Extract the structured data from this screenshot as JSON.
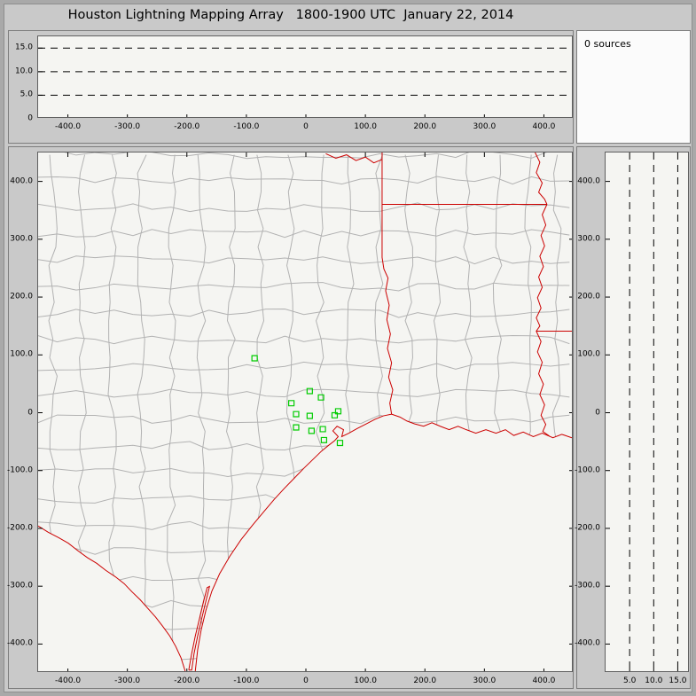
{
  "title": "Houston Lightning Mapping Array   1800-1900 UTC  January 22, 2014",
  "sources_panel": {
    "label": "0 sources"
  },
  "colors": {
    "background": "#c9c9c9",
    "plot_bg": "#f5f5f2",
    "county_line": "#b2b2b2",
    "state_line": "#cc0000",
    "station": "#00cc00",
    "gridline": "#000000",
    "text": "#000000"
  },
  "chart_data": [
    {
      "id": "altitude_vs_ew_distance",
      "type": "scatter",
      "xlim": [
        -450,
        450
      ],
      "ylim": [
        0,
        17.5
      ],
      "xticks": [
        {
          "v": -400,
          "label": "-400.0"
        },
        {
          "v": -300,
          "label": "-300.0"
        },
        {
          "v": -200,
          "label": "-200.0"
        },
        {
          "v": -100,
          "label": "-100.0"
        },
        {
          "v": 0,
          "label": "0"
        },
        {
          "v": 100,
          "label": "100.0"
        },
        {
          "v": 200,
          "label": "200.0"
        },
        {
          "v": 300,
          "label": "300.0"
        },
        {
          "v": 400,
          "label": "400.0"
        }
      ],
      "yticks": [
        {
          "v": 15,
          "label": "15.0"
        },
        {
          "v": 10,
          "label": "10.0"
        },
        {
          "v": 5,
          "label": "5.0"
        },
        {
          "v": 0,
          "label": "0"
        }
      ],
      "hlines": [
        5,
        10,
        15
      ],
      "points": []
    },
    {
      "id": "plan_view_map",
      "type": "scatter",
      "xlim": [
        -450,
        450
      ],
      "ylim": [
        -450,
        450
      ],
      "xticks": [
        {
          "v": -400,
          "label": "-400.0"
        },
        {
          "v": -300,
          "label": "-300.0"
        },
        {
          "v": -200,
          "label": "-200.0"
        },
        {
          "v": -100,
          "label": "-100.0"
        },
        {
          "v": 0,
          "label": "0"
        },
        {
          "v": 100,
          "label": "100.0"
        },
        {
          "v": 200,
          "label": "200.0"
        },
        {
          "v": 300,
          "label": "300.0"
        },
        {
          "v": 400,
          "label": "400.0"
        }
      ],
      "yticks": [
        {
          "v": 400,
          "label": "400.0"
        },
        {
          "v": 300,
          "label": "300.0"
        },
        {
          "v": 200,
          "label": "200.0"
        },
        {
          "v": 100,
          "label": "100.0"
        },
        {
          "v": 0,
          "label": "0"
        },
        {
          "v": -100,
          "label": "-100.0"
        },
        {
          "v": -200,
          "label": "-200.0"
        },
        {
          "v": -300,
          "label": "-300.0"
        },
        {
          "v": -400,
          "label": "-400.0"
        }
      ],
      "stations_km": [
        [
          -85,
          93
        ],
        [
          8,
          36
        ],
        [
          27,
          25
        ],
        [
          -23,
          15
        ],
        [
          -15,
          -4
        ],
        [
          8,
          -7
        ],
        [
          50,
          -6
        ],
        [
          56,
          1
        ],
        [
          -15,
          -27
        ],
        [
          11,
          -33
        ],
        [
          30,
          -30
        ],
        [
          32,
          -49
        ],
        [
          59,
          -54
        ]
      ],
      "points": []
    },
    {
      "id": "altitude_vs_ns_distance",
      "type": "scatter",
      "xlim": [
        0,
        17.5
      ],
      "ylim": [
        -450,
        450
      ],
      "xticks": [
        {
          "v": 5,
          "label": "5.0"
        },
        {
          "v": 10,
          "label": "10.0"
        },
        {
          "v": 15,
          "label": "15.0"
        }
      ],
      "yticks": [
        {
          "v": 400,
          "label": "400.0"
        },
        {
          "v": 300,
          "label": "300.0"
        },
        {
          "v": 200,
          "label": "200.0"
        },
        {
          "v": 100,
          "label": "100.0"
        },
        {
          "v": 0,
          "label": "0"
        },
        {
          "v": -100,
          "label": "-100.0"
        },
        {
          "v": -200,
          "label": "-200.0"
        },
        {
          "v": -300,
          "label": "-300.0"
        },
        {
          "v": -400,
          "label": "-400.0"
        }
      ],
      "vlines": [
        5,
        10,
        15
      ],
      "points": []
    }
  ]
}
